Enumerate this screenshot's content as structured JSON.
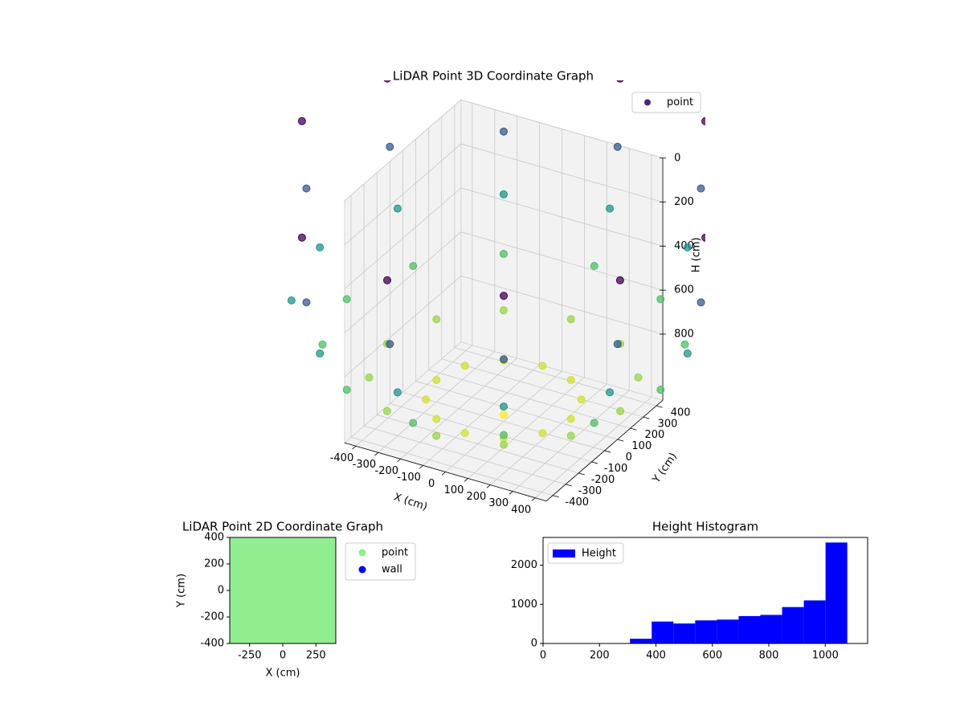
{
  "chart_data": [
    {
      "type": "scatter3d",
      "title": "LiDAR Point 3D Coordinate Graph",
      "xlabel": "X (cm)",
      "ylabel": "Y (cm)",
      "zlabel": "H (cm)",
      "xlim": [
        -450,
        450
      ],
      "ylim": [
        -450,
        450
      ],
      "zlim": [
        0,
        1100
      ],
      "z_inverted": true,
      "xticks": [
        -400,
        -300,
        -200,
        -100,
        0,
        100,
        200,
        300,
        400
      ],
      "yticks": [
        -400,
        -300,
        -200,
        -100,
        0,
        100,
        200,
        300,
        400
      ],
      "zticks": [
        0,
        200,
        400,
        600,
        800
      ],
      "grid": true,
      "legend": "upper right",
      "series": [
        {
          "name": "point",
          "color": "#482878",
          "cmap": "viridis",
          "x": [
            0,
            300,
            260,
            150,
            0,
            -150,
            -260,
            -300,
            -260,
            -150,
            0,
            150,
            260,
            520,
            450,
            260,
            0,
            -260,
            -450,
            -520,
            -450,
            -260,
            0,
            260,
            450,
            700,
            606,
            350,
            0,
            -350,
            -606,
            -700,
            -606,
            -350,
            0,
            350,
            606,
            820,
            710,
            410,
            0,
            -410,
            -710,
            -820,
            -710,
            -410,
            0,
            410,
            710,
            880,
            762,
            440,
            0,
            -440,
            -762,
            -880,
            -762,
            -440,
            0,
            440,
            762,
            900,
            779,
            450,
            0,
            -450,
            -779,
            -900,
            -779,
            -450,
            0,
            450,
            779
          ],
          "y": [
            0,
            0,
            150,
            260,
            300,
            260,
            150,
            0,
            -150,
            -260,
            -300,
            -260,
            -150,
            0,
            260,
            450,
            520,
            450,
            260,
            0,
            -260,
            -450,
            -520,
            -450,
            -260,
            0,
            350,
            606,
            700,
            606,
            350,
            0,
            -350,
            -606,
            -700,
            -606,
            -350,
            0,
            410,
            710,
            820,
            710,
            410,
            0,
            -410,
            -710,
            -820,
            -710,
            -410,
            0,
            440,
            762,
            880,
            762,
            440,
            0,
            -440,
            -762,
            -880,
            -762,
            -440,
            0,
            450,
            779,
            900,
            779,
            450,
            0,
            -450,
            -779,
            -900,
            -779,
            -450
          ],
          "z": [
            1070,
            1000,
            1000,
            1000,
            1000,
            1000,
            1000,
            1000,
            1000,
            1000,
            1000,
            1000,
            1000,
            900,
            900,
            900,
            900,
            900,
            900,
            900,
            900,
            900,
            900,
            900,
            900,
            750,
            750,
            750,
            750,
            750,
            750,
            750,
            750,
            750,
            750,
            750,
            750,
            550,
            550,
            550,
            550,
            550,
            550,
            550,
            550,
            550,
            550,
            550,
            550,
            300,
            300,
            300,
            300,
            300,
            300,
            300,
            300,
            300,
            300,
            300,
            300,
            0,
            0,
            0,
            0,
            0,
            0,
            0,
            0,
            0,
            0,
            0,
            0
          ]
        }
      ]
    },
    {
      "type": "scatter",
      "title": "LiDAR Point 2D Coordinate Graph",
      "xlabel": "X (cm)",
      "ylabel": "Y (cm)",
      "xlim": [
        -400,
        400
      ],
      "ylim": [
        -400,
        400
      ],
      "xticks": [
        -250,
        0,
        250
      ],
      "yticks": [
        -400,
        -200,
        0,
        200,
        400
      ],
      "legend": "outside right",
      "series": [
        {
          "name": "point",
          "color": "#90ee90",
          "x": [
            -400,
            -300,
            -200,
            -100,
            0,
            100,
            200,
            300,
            400,
            -400,
            -300,
            -200,
            -100,
            0,
            100,
            200,
            300,
            400,
            -400,
            -300,
            -200,
            -100,
            0,
            100,
            200,
            300,
            400,
            -400,
            -300,
            -200,
            -100,
            0,
            100,
            200,
            300,
            400,
            -400,
            -300,
            -200,
            -100,
            0,
            100,
            200,
            300,
            400,
            -400,
            -300,
            -200,
            -100,
            0,
            100,
            200,
            300,
            400,
            -400,
            -300,
            -200,
            -100,
            0,
            100,
            200,
            300,
            400,
            -400,
            -300,
            -200,
            -100,
            0,
            100,
            200,
            300,
            400,
            -400,
            -300,
            -200,
            -100,
            0,
            100,
            200,
            300,
            400
          ],
          "y": [
            -400,
            -400,
            -400,
            -400,
            -400,
            -400,
            -400,
            -400,
            -400,
            -300,
            -300,
            -300,
            -300,
            -300,
            -300,
            -300,
            -300,
            -300,
            -200,
            -200,
            -200,
            -200,
            -200,
            -200,
            -200,
            -200,
            -200,
            -100,
            -100,
            -100,
            -100,
            -100,
            -100,
            -100,
            -100,
            -100,
            0,
            0,
            0,
            0,
            0,
            0,
            0,
            0,
            0,
            100,
            100,
            100,
            100,
            100,
            100,
            100,
            100,
            100,
            200,
            200,
            200,
            200,
            200,
            200,
            200,
            200,
            200,
            300,
            300,
            300,
            300,
            300,
            300,
            300,
            300,
            300,
            400,
            400,
            400,
            400,
            400,
            400,
            400,
            400,
            400
          ]
        },
        {
          "name": "wall",
          "color": "#0000ff",
          "x": [],
          "y": []
        }
      ]
    },
    {
      "type": "histogram",
      "title": "Height Histogram",
      "bins": [
        0,
        77,
        154,
        231,
        308,
        385,
        462,
        539,
        616,
        693,
        770,
        847,
        924,
        1001,
        1078
      ],
      "values": [
        0,
        0,
        0,
        0,
        120,
        560,
        510,
        590,
        610,
        700,
        730,
        930,
        1100,
        2580
      ],
      "name": "Height",
      "color": "#0000ff",
      "xlim": [
        0,
        1150
      ],
      "ylim": [
        0,
        2710
      ],
      "xticks": [
        0,
        200,
        400,
        600,
        800,
        1000
      ],
      "yticks": [
        0,
        1000,
        2000
      ],
      "legend": "upper left"
    }
  ]
}
